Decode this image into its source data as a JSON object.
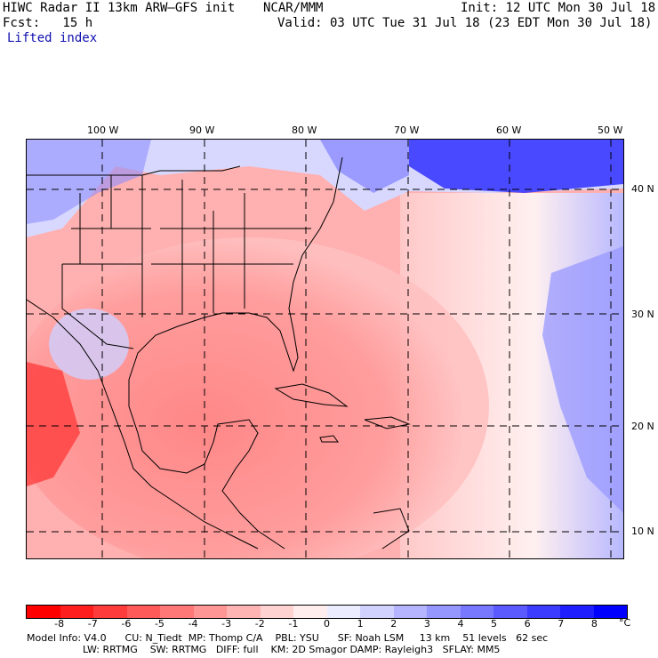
{
  "header": {
    "model_line": "HIWC Radar II 13km ARW–GFS init",
    "org": "NCAR/MMM",
    "init": "Init: 12 UTC Mon 30 Jul 18",
    "fcst": "Fcst:   15 h",
    "valid": "Valid: 03 UTC Tue 31 Jul 18 (23 EDT Mon 30 Jul 18)",
    "field": "Lifted index"
  },
  "map": {
    "lon_labels": [
      "100 W",
      "90 W",
      "80 W",
      "70 W",
      "60 W",
      "50 W"
    ],
    "lat_labels": [
      "40 N",
      "30 N",
      "20 N",
      "10 N"
    ]
  },
  "colorbar": {
    "colors": [
      "#ff0000",
      "#ff1e1e",
      "#ff3c3c",
      "#ff5a5a",
      "#ff7878",
      "#ff9696",
      "#ffb4b4",
      "#ffd2d2",
      "#ffecec",
      "#ececff",
      "#d2d2ff",
      "#b4b4ff",
      "#9696ff",
      "#7878ff",
      "#5a5aff",
      "#3c3cff",
      "#1e1eff",
      "#0000ff"
    ],
    "labels": [
      "-8",
      "-7",
      "-6",
      "-5",
      "-4",
      "-3",
      "-2",
      "-1",
      "0",
      "1",
      "2",
      "3",
      "4",
      "5",
      "6",
      "7",
      "8"
    ],
    "unit": "°C"
  },
  "footer": {
    "line1": "Model Info: V4.0      CU: N_Tiedt  MP: Thomp C/A    PBL: YSU      SF: Noah LSM     13 km    51 levels   62 sec",
    "line2": "                  LW: RRTMG    SW: RRTMG   DIFF: full    KM: 2D Smagor DAMP: Rayleigh3   SFLAY: MM5"
  }
}
